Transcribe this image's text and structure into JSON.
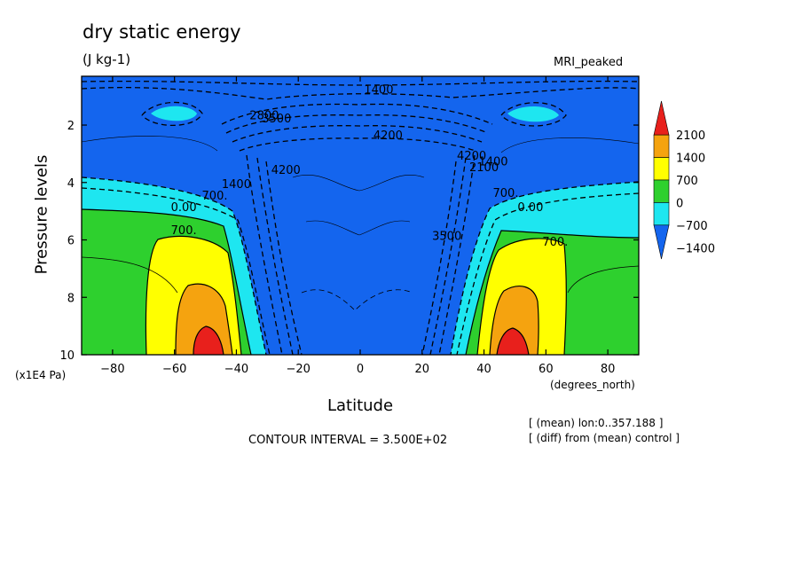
{
  "header": {
    "title": "dry static energy",
    "units": "(J kg-1)",
    "run_name": "MRI_peaked"
  },
  "footer": {
    "contour_interval": "CONTOUR INTERVAL = 3.500E+02",
    "note_mean": "[ (mean) lon:0..357.188 ]",
    "note_diff": "[ (diff) from (mean) control ]"
  },
  "chart_data": {
    "type": "contour",
    "title": "dry static energy",
    "units": "(J kg-1)",
    "xlabel": "Latitude",
    "xunit": "(degrees_north)",
    "ylabel": "Pressure levels",
    "yunit": "(x1E4 Pa)",
    "xlim": [
      -90,
      90
    ],
    "ylim": [
      10,
      0.3
    ],
    "y_inverted": true,
    "x_ticks": [
      -80,
      -60,
      -40,
      -20,
      0,
      20,
      40,
      60,
      80
    ],
    "x_tick_labels": [
      "−80",
      "−60",
      "−40",
      "−20",
      "0",
      "20",
      "40",
      "60",
      "80"
    ],
    "y_ticks": [
      2,
      4,
      6,
      8,
      10
    ],
    "y_tick_labels": [
      "2",
      "4",
      "6",
      "8",
      "10"
    ],
    "contour_interval": 350,
    "colorbar": {
      "levels": [
        2100,
        1400,
        700,
        0,
        -700,
        -1400
      ],
      "level_labels": [
        "2100",
        "1400",
        "700",
        "0",
        "−700",
        "−1400"
      ],
      "colors": [
        "#e8201c",
        "#f5a30f",
        "#ffff00",
        "#2ed02e",
        "#1ee6f0",
        "#1465ee"
      ]
    },
    "contour_labels": [
      {
        "text": "1400",
        "x": 6,
        "y": 0.9
      },
      {
        "text": "4200",
        "x": 9,
        "y": 2.5
      },
      {
        "text": "2800",
        "x": -31,
        "y": 1.8
      },
      {
        "text": "3500",
        "x": -27,
        "y": 1.9
      },
      {
        "text": "4200",
        "x": -24,
        "y": 3.7
      },
      {
        "text": "1400",
        "x": -40,
        "y": 4.2
      },
      {
        "text": "700.",
        "x": -47,
        "y": 4.6
      },
      {
        "text": "0.00",
        "x": -57,
        "y": 5.0
      },
      {
        "text": "700.",
        "x": -57,
        "y": 5.8
      },
      {
        "text": "4200",
        "x": 36,
        "y": 3.2
      },
      {
        "text": "2100",
        "x": 40,
        "y": 3.6
      },
      {
        "text": "1400",
        "x": 43,
        "y": 3.4
      },
      {
        "text": "700.",
        "x": 47,
        "y": 4.5
      },
      {
        "text": "0.00",
        "x": 55,
        "y": 5.0
      },
      {
        "text": "700.",
        "x": 63,
        "y": 6.2
      },
      {
        "text": "3500",
        "x": 28,
        "y": 6.0
      }
    ]
  }
}
